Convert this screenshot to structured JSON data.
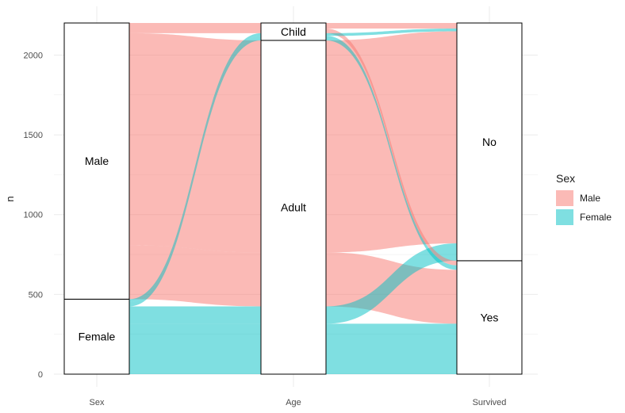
{
  "chart_data": {
    "type": "alluvial",
    "title": "",
    "xlabel": "",
    "ylabel": "n",
    "ylim": [
      0,
      2201
    ],
    "y_ticks": [
      0,
      500,
      1000,
      1500,
      2000
    ],
    "grid": true,
    "legend_position": "right",
    "axes": [
      "Sex",
      "Age",
      "Survived"
    ],
    "strata": {
      "Sex": [
        {
          "name": "Female",
          "value": 470
        },
        {
          "name": "Male",
          "value": 1731
        }
      ],
      "Age": [
        {
          "name": "Adult",
          "value": 2092
        },
        {
          "name": "Child",
          "value": 109
        }
      ],
      "Survived": [
        {
          "name": "Yes",
          "value": 711
        },
        {
          "name": "No",
          "value": 1490
        }
      ]
    },
    "legend": {
      "title": "Sex",
      "entries": [
        {
          "name": "Male",
          "color": "#F8766D"
        },
        {
          "name": "Female",
          "color": "#00BFC4"
        }
      ]
    },
    "flows": [
      {
        "sex": "Female",
        "age": "Adult",
        "survived": "Yes",
        "n": 316
      },
      {
        "sex": "Female",
        "age": "Adult",
        "survived": "No",
        "n": 109
      },
      {
        "sex": "Female",
        "age": "Child",
        "survived": "Yes",
        "n": 28
      },
      {
        "sex": "Female",
        "age": "Child",
        "survived": "No",
        "n": 17
      },
      {
        "sex": "Male",
        "age": "Adult",
        "survived": "Yes",
        "n": 338
      },
      {
        "sex": "Male",
        "age": "Adult",
        "survived": "No",
        "n": 1329
      },
      {
        "sex": "Male",
        "age": "Child",
        "survived": "Yes",
        "n": 29
      },
      {
        "sex": "Male",
        "age": "Child",
        "survived": "No",
        "n": 35
      }
    ],
    "colors": {
      "Male": "#F8766D",
      "Female": "#00BFC4",
      "stratum_fill": "#FFFFFF",
      "stratum_stroke": "#000000",
      "grid": "#EBEBEB"
    }
  }
}
